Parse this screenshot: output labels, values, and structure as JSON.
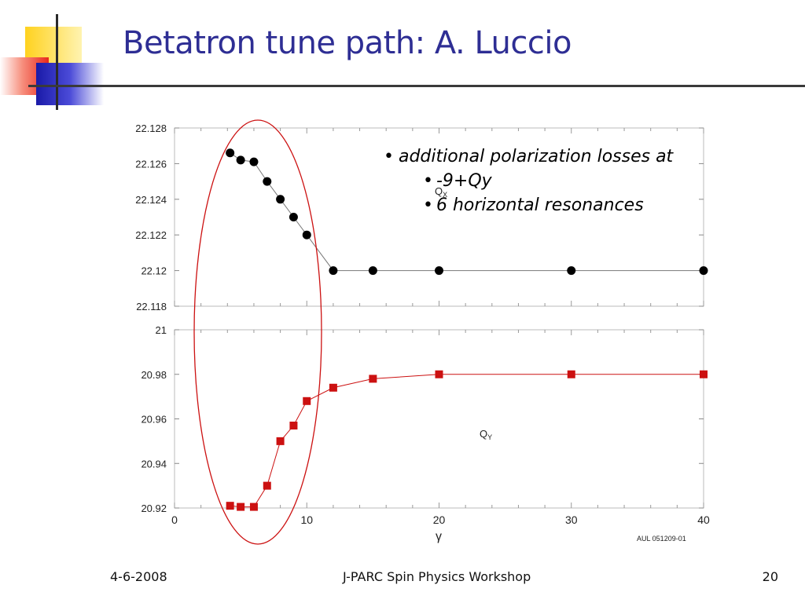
{
  "slide": {
    "title": "Betatron tune path: A. Luccio",
    "bullets": [
      {
        "text": "additional polarization losses at",
        "sub": [
          {
            "text": "-9+Qy"
          },
          {
            "text": "6 horizontal resonances"
          }
        ]
      }
    ],
    "footer": {
      "date": "4-6-2008",
      "event": "J-PARC Spin Physics Workshop",
      "page": "20"
    },
    "colors": {
      "title": "#2e2e94",
      "logo_yellow": "#ffd21f",
      "logo_red": "#f03a2e",
      "logo_blue": "#2222c8",
      "ellipse": "#cc1111"
    }
  },
  "chart_data": [
    {
      "type": "line",
      "series": [
        {
          "name": "Qx",
          "color": "#000000",
          "marker": "circle",
          "x": [
            4.2,
            5,
            6,
            7,
            8,
            9,
            10,
            12,
            15,
            20,
            30,
            40
          ],
          "y": [
            22.1266,
            22.1262,
            22.1261,
            22.125,
            22.124,
            22.123,
            22.122,
            22.12,
            22.12,
            22.12,
            22.12,
            22.12
          ]
        }
      ],
      "xlim": [
        0,
        40
      ],
      "ylim": [
        22.118,
        22.128
      ],
      "yticks": [
        "22.118",
        "22.12",
        "22.122",
        "22.124",
        "22.126",
        "22.128"
      ],
      "annotation": "Q",
      "annotation_sub": "X"
    },
    {
      "type": "line",
      "series": [
        {
          "name": "Qy",
          "color": "#cc1111",
          "marker": "square",
          "x": [
            4.2,
            5,
            6,
            7,
            8,
            9,
            10,
            12,
            15,
            20,
            30,
            40
          ],
          "y": [
            20.921,
            20.9205,
            20.9205,
            20.93,
            20.95,
            20.957,
            20.968,
            20.974,
            20.978,
            20.98,
            20.98,
            20.98
          ]
        }
      ],
      "xlim": [
        0,
        40
      ],
      "ylim": [
        20.92,
        21
      ],
      "yticks": [
        "20.92",
        "20.94",
        "20.96",
        "20.98",
        "21"
      ],
      "xticks": [
        "0",
        "10",
        "20",
        "30",
        "40"
      ],
      "xlabel": "γ",
      "annotation": "Q",
      "annotation_sub": "Y",
      "credit": "AUL 051209-01"
    }
  ]
}
